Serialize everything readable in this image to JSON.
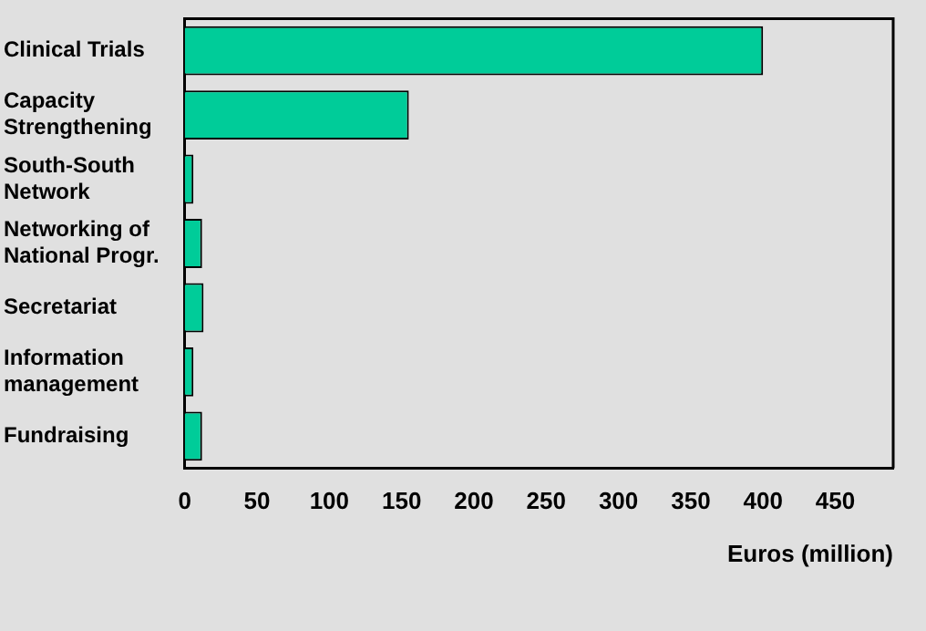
{
  "chart_data": {
    "type": "bar",
    "orientation": "horizontal",
    "categories": [
      "Clinical Trials",
      "Capacity Strengthening",
      "South-South Network",
      "Networking of National Progr.",
      "Secretariat",
      "Information management",
      "Fundraising"
    ],
    "values": [
      400,
      155,
      6,
      12,
      13,
      6,
      12
    ],
    "color": "#00cc99",
    "xlabel": "Euros (million)",
    "xlim": [
      0,
      490
    ],
    "xticks": [
      0,
      50,
      100,
      150,
      200,
      250,
      300,
      350,
      400,
      450
    ],
    "grid": false,
    "legend": false
  }
}
